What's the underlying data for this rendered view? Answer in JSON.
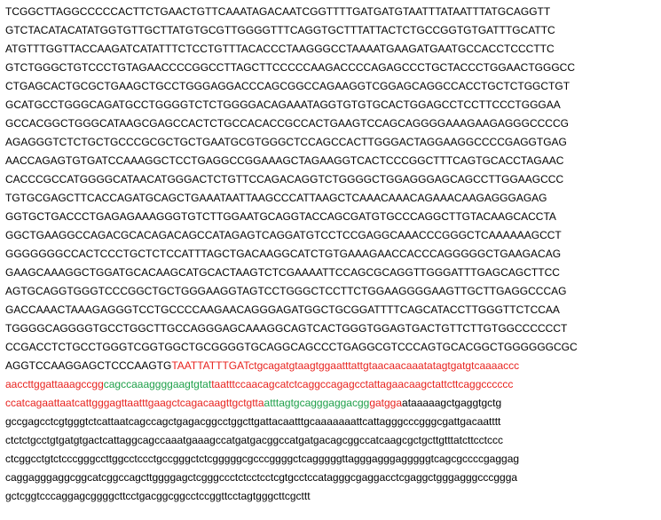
{
  "colors": {
    "default": "#000000",
    "red": "#e8231f",
    "green": "#1fa04a"
  },
  "lines": [
    [
      {
        "t": "TCGGCTTAGGCCCCCACTTCTGAACTGTTCAAATAGACAATCGGTTTTGATGATGTAATTTATAATTTATGCAGGTT",
        "c": "default"
      }
    ],
    [
      {
        "t": "GTCTACATACATATGGTGTTGCTTATGTGCGTTGGGGTTTCAGGTGCTTTATTACTCTGCCGGTGTGATTTGCATTC",
        "c": "default"
      }
    ],
    [
      {
        "t": "ATGTTTGGTTACCAAGATCATATTTCTCCTGTTTACACCCTAAGGGCCTAAAATGAAGATGAATGCCACCTCCCTTC",
        "c": "default"
      }
    ],
    [
      {
        "t": "GTCTGGGCTGTCCCTGTAGAACCCCGGCCTTAGCTTCCCCCAAGACCCCAGAGCCCTGCTACCCTGGAACTGGGCC",
        "c": "default"
      }
    ],
    [
      {
        "t": "CTGAGCACTGCGCTGAAGCTGCCTGGGAGGACCCAGCGGCCAGAAGGTCGGAGCAGGCCACCTGCTCTGGCTGT",
        "c": "default"
      }
    ],
    [
      {
        "t": "GCATGCCTGGGCAGATGCCTGGGGTCTCTGGGGACAGAAATAGGTGTGTGCACTGGAGCCTCCTTCCCTGGGAA",
        "c": "default"
      }
    ],
    [
      {
        "t": "GCCACGGCTGGGCATAAGCGAGCCACTCTGCCACACCGCCACTGAAGTCCAGCAGGGGAAAGAAGAGGGCCCCG",
        "c": "default"
      }
    ],
    [
      {
        "t": "AGAGGGTCTCTGCTGCCCGCGCTGCTGAATGCGTGGGCTCCAGCCACTTGGGACTAGGAAGGCCCCGAGGTGAG",
        "c": "default"
      }
    ],
    [
      {
        "t": "AACCAGAGTGTGATCCAAAGGCTCCTGAGGCCGGAAAGCTAGAAGGTCACTCCCGGCTTTCAGTGCACCTAGAAC",
        "c": "default"
      }
    ],
    [
      {
        "t": "CACCCGCCATGGGGCATAACATGGGACTCTGTTCCAGACAGGTCTGGGGCTGGAGGGAGCAGCCTTGGAAGCCC",
        "c": "default"
      }
    ],
    [
      {
        "t": "TGTGCGAGCTTCACCAGATGCAGCTGAAATAATTAAGCCCATTAAGCTCAAACAAACAGAAACAAGAGGGAGAG",
        "c": "default"
      }
    ],
    [
      {
        "t": "GGTGCTGACCCTGAGAGAAAGGGTGTCTTGGAATGCAGGTACCAGCGATGTGCCCAGGCTTGTACAAGCACCTA",
        "c": "default"
      }
    ],
    [
      {
        "t": "GGCTGAAGGCCAGACGCACAGACAGCCATAGAGTCAGGATGTCCTCCGAGGCAAACCCGGGCTCAAAAAAGCCT",
        "c": "default"
      }
    ],
    [
      {
        "t": "GGGGGGGCCACTCCCTGCTCTCCATTTAGCTGACAAGGCATCTGTGAAAGAACCACCCAGGGGGCTGAAGACAG",
        "c": "default"
      }
    ],
    [
      {
        "t": "GAAGCAAAGGCTGGATGCACAAGCATGCACTAAGTCTCGAAAATTCCAGCGCAGGTTGGGATTTGAGCAGCTTCC",
        "c": "default"
      }
    ],
    [
      {
        "t": "AGTGCAGGTGGGTCCCGGCTGCTGGGAAGGTAGTCCTGGGCTCCTTCTGGAAGGGGAAGTTGCTTGAGGCCCAG",
        "c": "default"
      }
    ],
    [
      {
        "t": "GACCAAACTAAAGAGGGTCCTGCCCCAAGAACAGGGAGATGGCTGCGGATTTTCAGCATACCTTGGGTTCTCCAA",
        "c": "default"
      }
    ],
    [
      {
        "t": "TGGGGCAGGGGTGCCTGGCTTGCCAGGGAGCAAAGGCAGTCACTGGGTGGAGTGACTGTTCTTGTGGCCCCCCT",
        "c": "default"
      }
    ],
    [
      {
        "t": "CCGACCTCTGCCTGGGTCGGTGGCTGCGGGGTGCAGGCAGCCCTGAGGCGTCCCAGTGCACGGCTGGGGGGCGC",
        "c": "default"
      }
    ],
    [
      {
        "t": "AGGTCCAAGGAGCTCCCAAGTG",
        "c": "default"
      },
      {
        "t": "TAATTATTTGATctgcagatgtaagtggaatttattgtaacaacaaatatagtgatgtcaaaaccc",
        "c": "red"
      }
    ],
    [
      {
        "t": "aaccttggattaaagccgg",
        "c": "red"
      },
      {
        "t": "cagccaaaggggaagtgtat",
        "c": "green"
      },
      {
        "t": "taatttccaacagcatctcaggccagagcctattagaacaagctattcttcaggcccccc",
        "c": "red"
      }
    ],
    [
      {
        "t": "ccatcagaattaatcattgggagttaatttgaagctcagacaagttgctgtta",
        "c": "red"
      },
      {
        "t": "atttagtgcagggaggacgg",
        "c": "green"
      },
      {
        "t": "gatgga",
        "c": "red"
      },
      {
        "t": "ataaaaagctgaggtgctg",
        "c": "default"
      }
    ],
    [
      {
        "t": "gccgagcctcgtgggtctcattaatcagccagctgagacggcctggcttgattacaatttgcaaaaaaattcattagggcccgggcgattgacaatttt",
        "c": "default"
      }
    ],
    [
      {
        "t": "ctctctgcctgtgatgtgactcattaggcagccaaatgaaagccatgatgacggccatgatgacagcggccatcaagcgctgcttgtttatcttcctccc",
        "c": "default"
      }
    ],
    [
      {
        "t": "ctcggcctgtctcccgggccttggcctccctgccgggctctcgggggcgcccggggctcagggggttagggagggagggggtcagcgccccgaggag",
        "c": "default"
      }
    ],
    [
      {
        "t": "caggagggaggcggcatcggccagcttggggagctcgggccctctcctcctcgtgcctccatagggcgaggacctcgaggctgggagggcccggga",
        "c": "default"
      }
    ],
    [
      {
        "t": "gctcggtcccaggagcggggcttcctgacggcggcctccggttcctagtgggcttcgcttt",
        "c": "default"
      }
    ]
  ]
}
